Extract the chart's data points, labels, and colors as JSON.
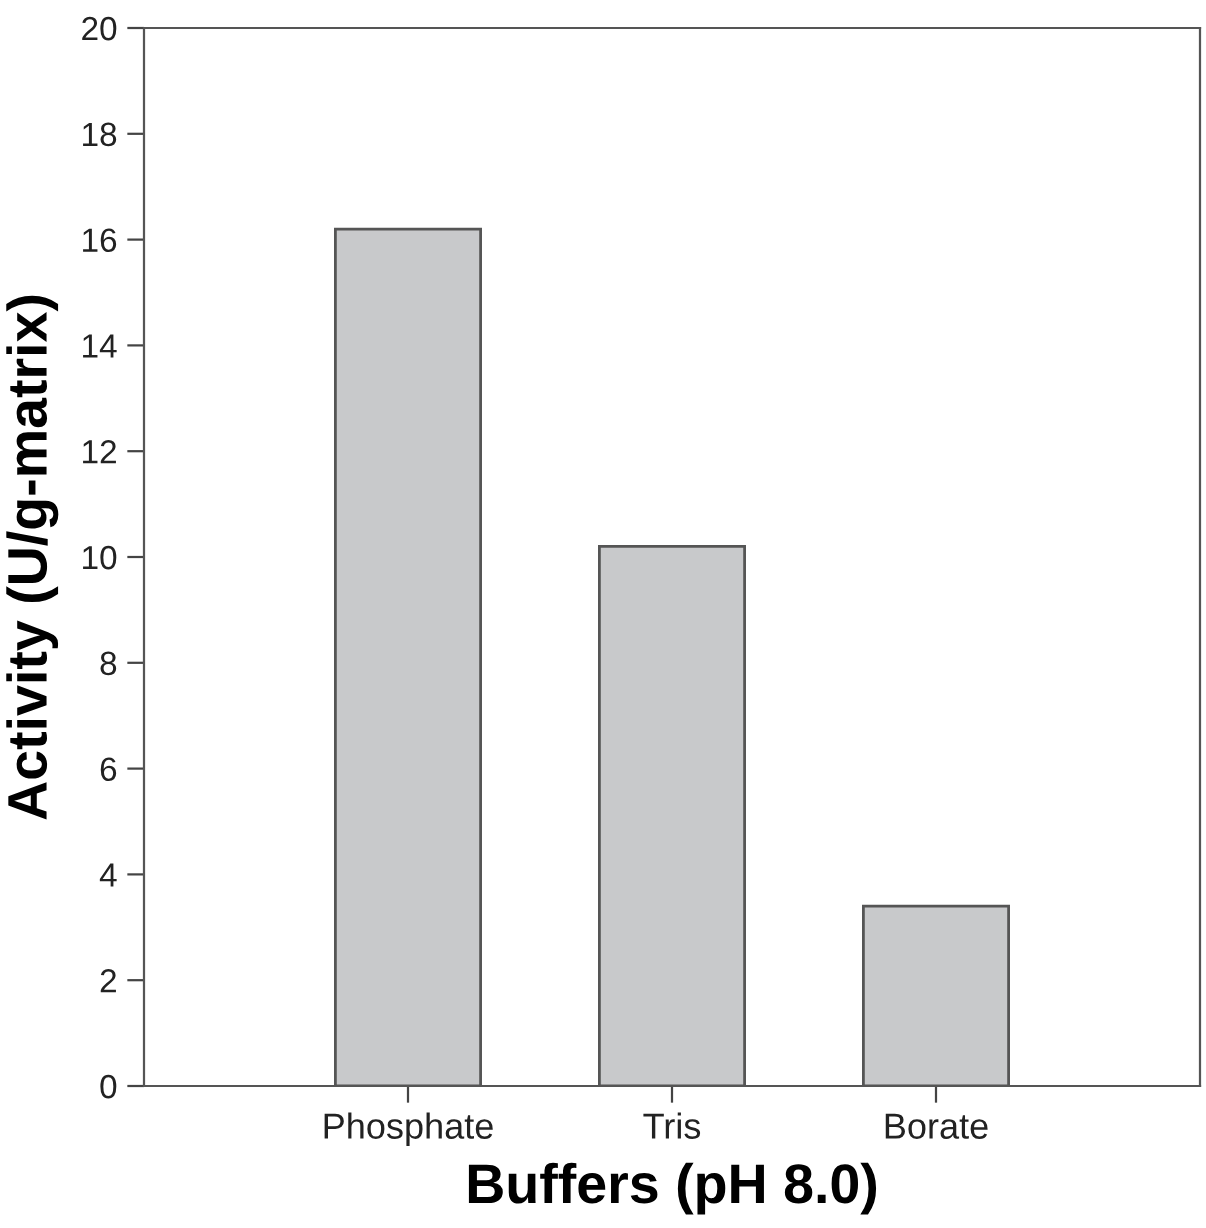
{
  "chart_data": {
    "type": "bar",
    "xlabel": "Buffers (pH 8.0)",
    "ylabel": "Activity (U/g-matrix)",
    "categories": [
      "Phosphate",
      "Tris",
      "Borate"
    ],
    "values": [
      16.2,
      10.2,
      3.4
    ],
    "color": "#c8c9cb",
    "ylim": [
      0,
      20
    ],
    "yticks": [
      0,
      2,
      4,
      6,
      8,
      10,
      12,
      14,
      16,
      18,
      20
    ],
    "grid": false,
    "legend": false
  }
}
